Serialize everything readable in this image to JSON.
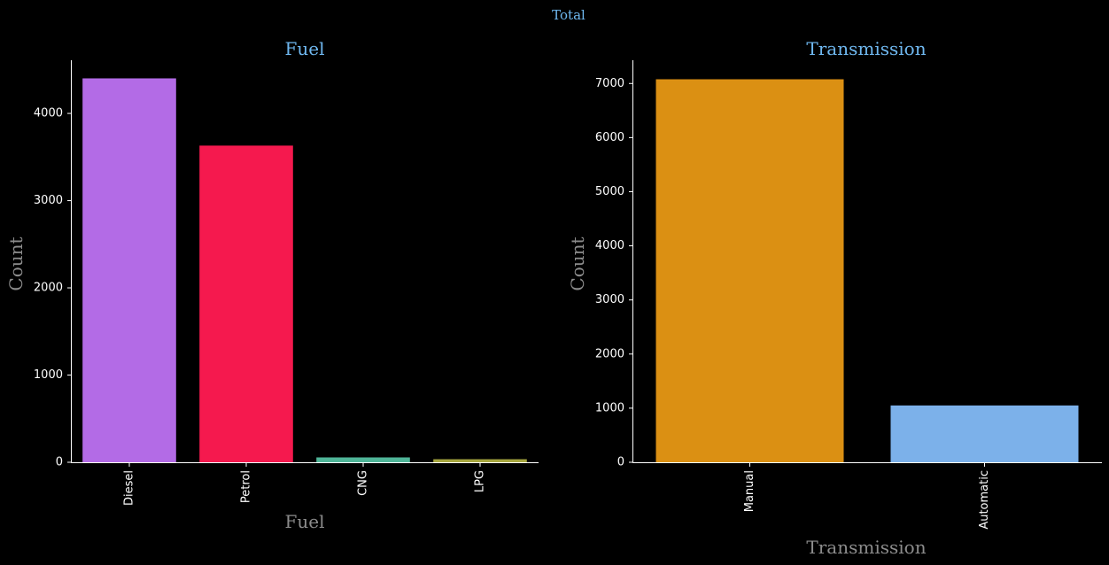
{
  "figure": {
    "suptitle": "Total",
    "background": "#000000"
  },
  "chart_data": [
    {
      "type": "bar",
      "title": "Fuel",
      "xlabel": "Fuel",
      "ylabel": "Count",
      "categories": [
        "Diesel",
        "Petrol",
        "CNG",
        "LPG"
      ],
      "values": [
        4402,
        3631,
        56,
        35
      ],
      "colors": [
        "#b36be6",
        "#f5194e",
        "#4fb598",
        "#a6a63f"
      ],
      "ylim": [
        0,
        4610
      ],
      "yticks": [
        0,
        1000,
        2000,
        3000,
        4000
      ],
      "grid": false
    },
    {
      "type": "bar",
      "title": "Transmission",
      "xlabel": "Transmission",
      "ylabel": "Count",
      "categories": [
        "Manual",
        "Automatic"
      ],
      "values": [
        7078,
        1050
      ],
      "colors": [
        "#db9013",
        "#7cb1ea"
      ],
      "ylim": [
        0,
        7430
      ],
      "yticks": [
        0,
        1000,
        2000,
        3000,
        4000,
        5000,
        6000,
        7000
      ],
      "grid": false
    }
  ]
}
